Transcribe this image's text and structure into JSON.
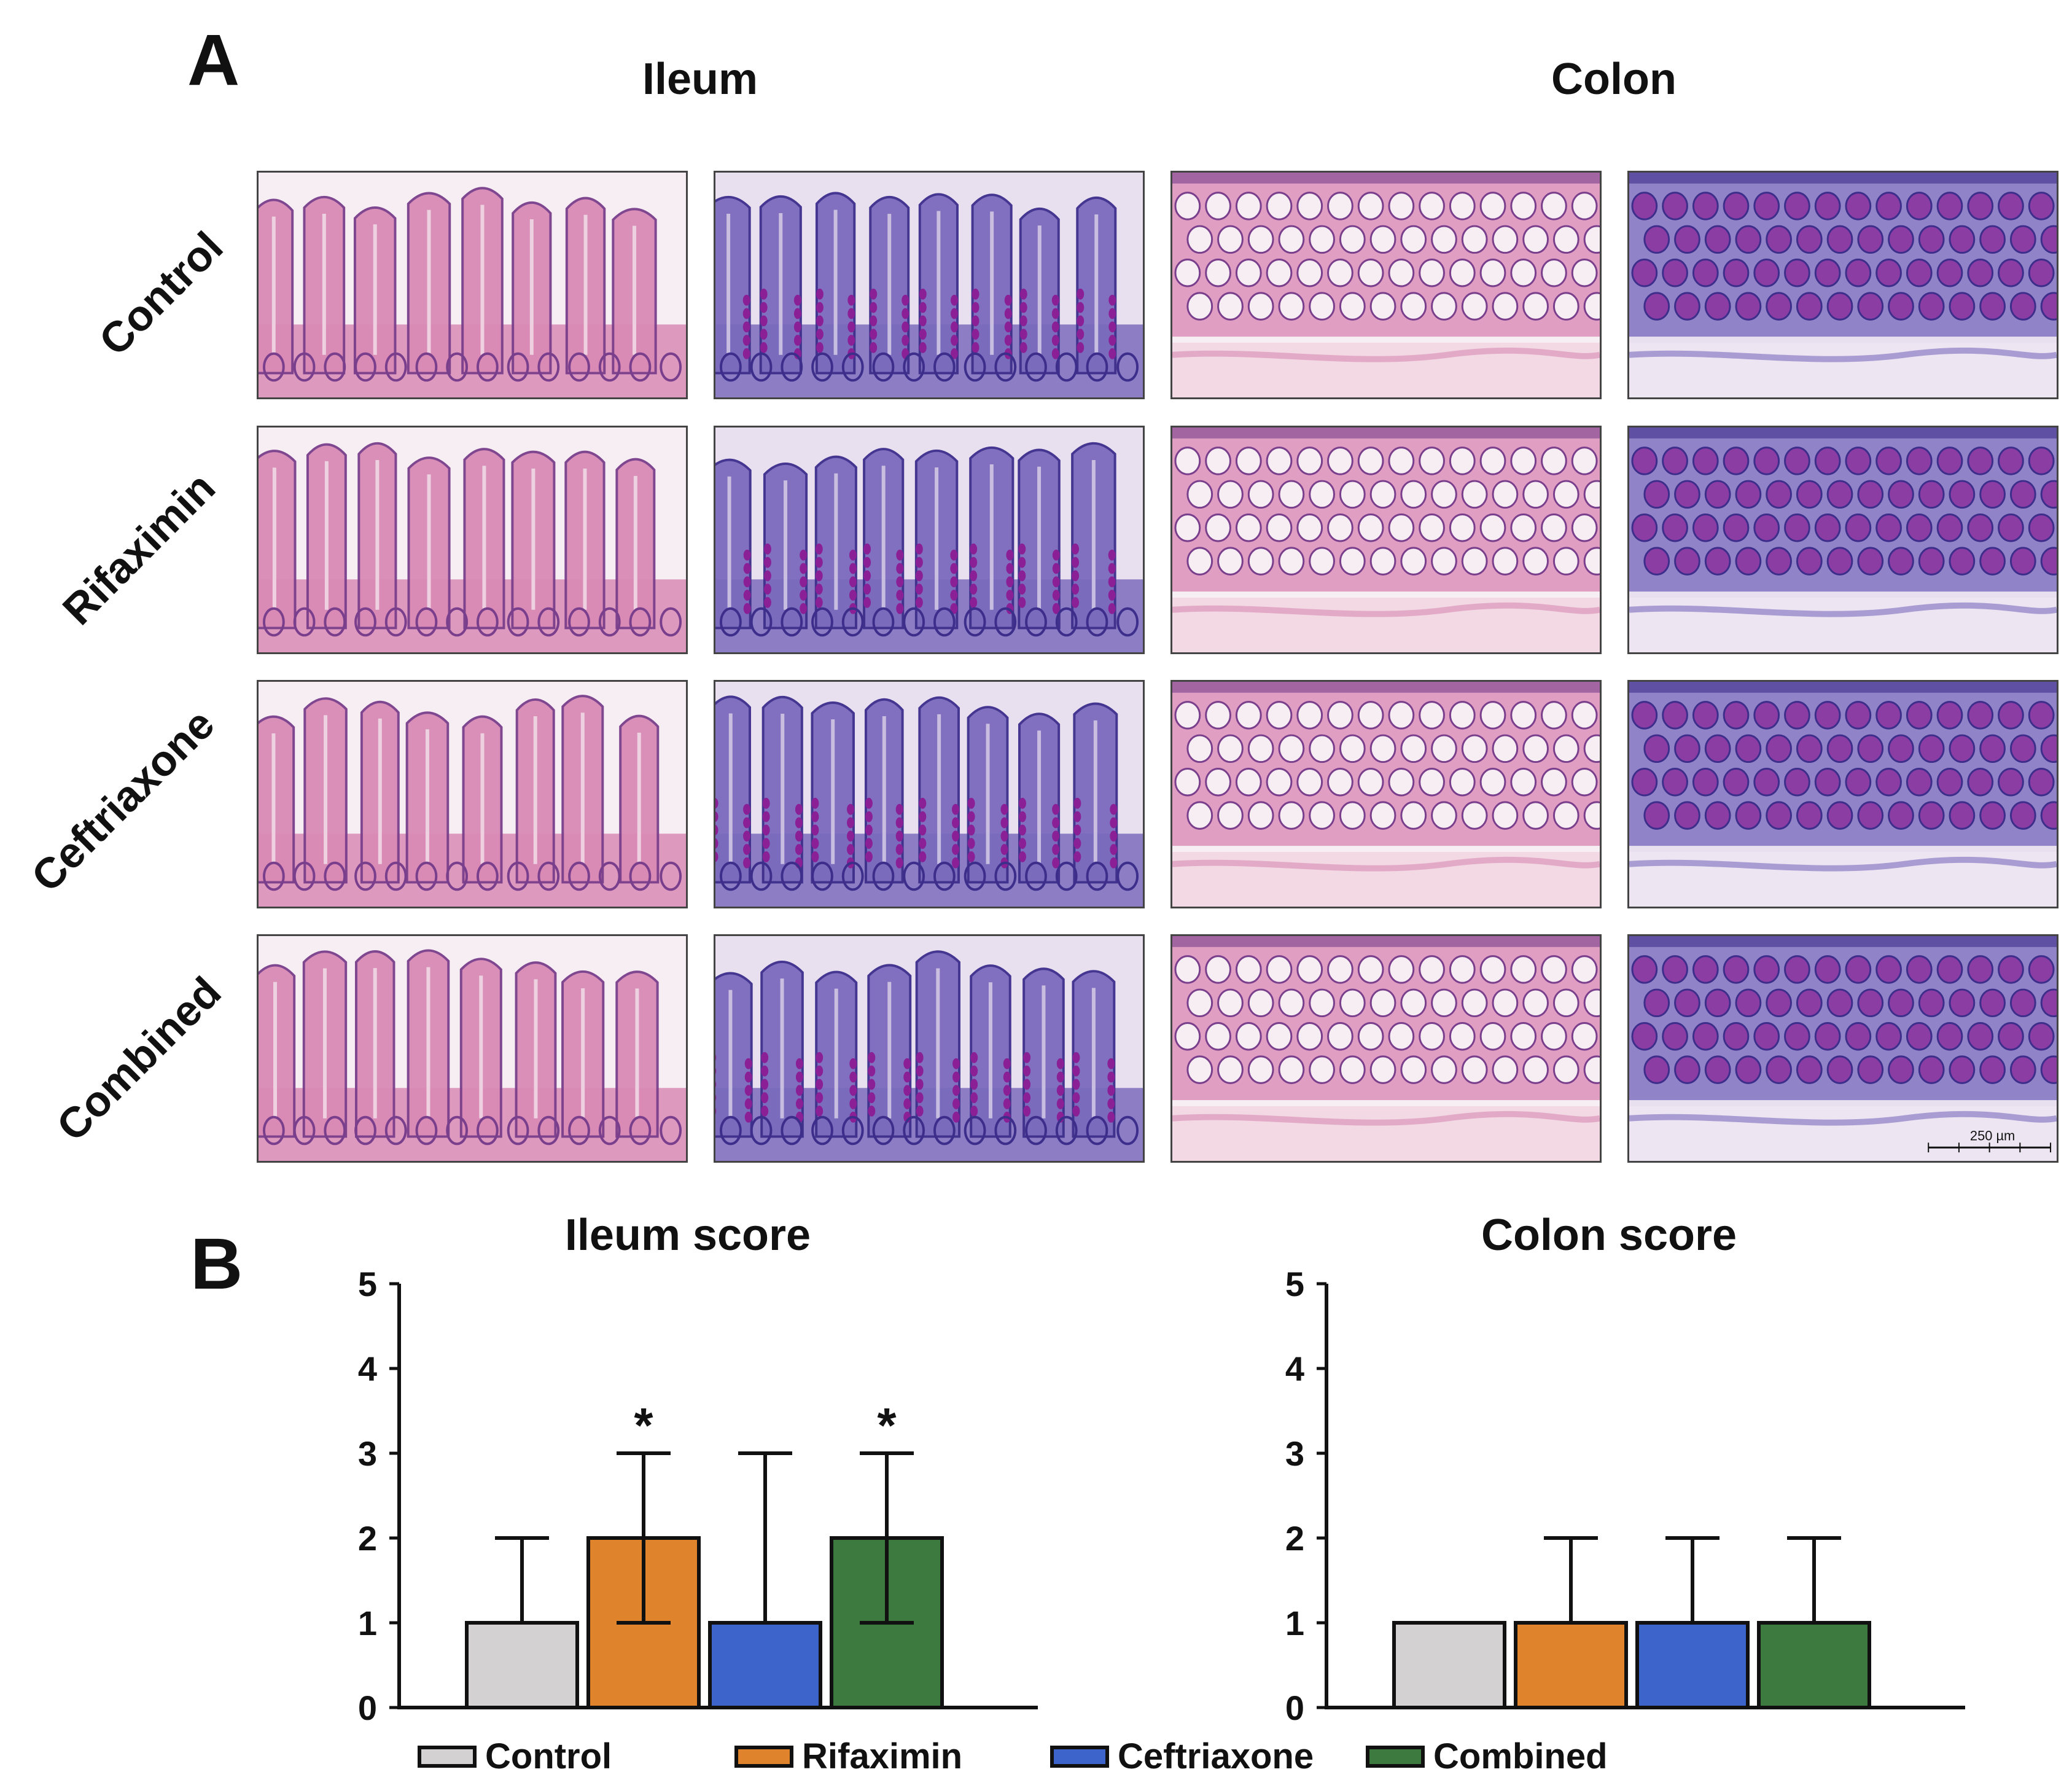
{
  "panel_a": {
    "letter": "A",
    "columns": [
      {
        "title": "Ileum"
      },
      {
        "title": "Colon"
      }
    ],
    "rows": [
      {
        "label": "Control"
      },
      {
        "label": "Rifaximin"
      },
      {
        "label": "Ceftriaxone"
      },
      {
        "label": "Combined"
      }
    ],
    "stains": {
      "he": {
        "bg": "#f3d9e4",
        "tissue": "#d98ab5",
        "nuclei": "#7a3f8c",
        "lumen": "#f7eef3"
      },
      "pas": {
        "bg": "#ede6f2",
        "tissue": "#7b6bbd",
        "nuclei": "#3d2e8c",
        "goblet": "#8a1f96",
        "lumen": "#e8e0ef"
      }
    },
    "scale_bar": "250 µm"
  },
  "panel_b": {
    "letter": "B",
    "legend": [
      {
        "name": "Control",
        "color": "#d3d1d2"
      },
      {
        "name": "Rifaximin",
        "color": "#e0832d"
      },
      {
        "name": "Ceftriaxone",
        "color": "#3c64cb"
      },
      {
        "name": "Combined",
        "color": "#3c7a3f"
      }
    ]
  },
  "chart_data": [
    {
      "type": "bar",
      "title": "Ileum score",
      "categories": [
        "Control",
        "Rifaximin",
        "Ceftriaxone",
        "Combined"
      ],
      "values": [
        1,
        2,
        1,
        2
      ],
      "error_upper": [
        2,
        3,
        3,
        3
      ],
      "error_lower": [
        1,
        1,
        1,
        1
      ],
      "significance": [
        "",
        "*",
        "",
        "*"
      ],
      "colors": [
        "#d3d1d2",
        "#e0832d",
        "#3c64cb",
        "#3c7a3f"
      ],
      "ylim": [
        0,
        5
      ],
      "yticks": [
        0,
        1,
        2,
        3,
        4,
        5
      ],
      "grid": false
    },
    {
      "type": "bar",
      "title": "Colon score",
      "categories": [
        "Control",
        "Rifaximin",
        "Ceftriaxone",
        "Combined"
      ],
      "values": [
        1,
        1,
        1,
        1
      ],
      "error_upper": [
        1,
        2,
        2,
        2
      ],
      "error_lower": [
        1,
        1,
        1,
        1
      ],
      "significance": [
        "",
        "",
        "",
        ""
      ],
      "colors": [
        "#d3d1d2",
        "#e0832d",
        "#3c64cb",
        "#3c7a3f"
      ],
      "ylim": [
        0,
        5
      ],
      "yticks": [
        0,
        1,
        2,
        3,
        4,
        5
      ],
      "grid": false
    }
  ]
}
